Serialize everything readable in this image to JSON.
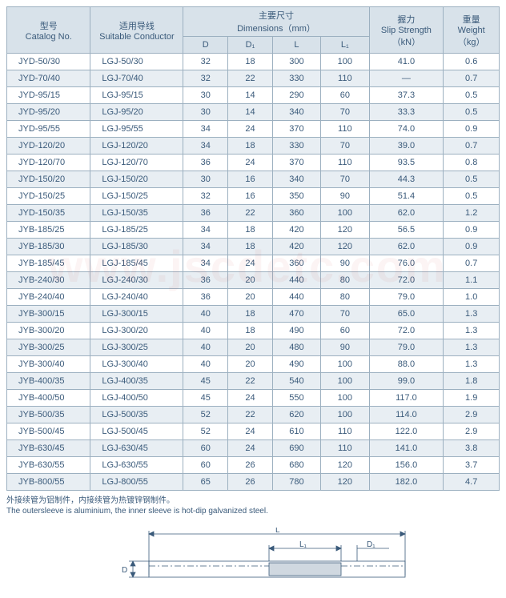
{
  "headers": {
    "catalog_cn": "型号",
    "catalog_en": "Catalog No.",
    "conductor_cn": "适用导线",
    "conductor_en": "Suitable Conductor",
    "dims_cn": "主要尺寸",
    "dims_en": "Dimensions（mm）",
    "D": "D",
    "D1": "D₁",
    "L": "L",
    "L1": "L₁",
    "slip_cn": "握力",
    "slip_en": "Slip Strength",
    "slip_unit": "（kN）",
    "weight_cn": "重量",
    "weight_en": "Weight",
    "weight_unit": "（kg）"
  },
  "col_widths": {
    "catalog": 90,
    "conductor": 100,
    "D": 48,
    "D1": 48,
    "L": 52,
    "L1": 52,
    "slip": 80,
    "weight": 60
  },
  "header_bg": "#d8e2ea",
  "row_odd_bg": "#ffffff",
  "row_even_bg": "#e8eef3",
  "border_color": "#9cb0c0",
  "text_color": "#3a5a7a",
  "rows": [
    {
      "catalog": "JYD-50/30",
      "conductor": "LGJ-50/30",
      "D": "32",
      "D1": "18",
      "L": "300",
      "L1": "100",
      "slip": "41.0",
      "weight": "0.6"
    },
    {
      "catalog": "JYD-70/40",
      "conductor": "LGJ-70/40",
      "D": "32",
      "D1": "22",
      "L": "330",
      "L1": "110",
      "slip": "—",
      "weight": "0.7"
    },
    {
      "catalog": "JYD-95/15",
      "conductor": "LGJ-95/15",
      "D": "30",
      "D1": "14",
      "L": "290",
      "L1": "60",
      "slip": "37.3",
      "weight": "0.5"
    },
    {
      "catalog": "JYD-95/20",
      "conductor": "LGJ-95/20",
      "D": "30",
      "D1": "14",
      "L": "340",
      "L1": "70",
      "slip": "33.3",
      "weight": "0.5"
    },
    {
      "catalog": "JYD-95/55",
      "conductor": "LGJ-95/55",
      "D": "34",
      "D1": "24",
      "L": "370",
      "L1": "110",
      "slip": "74.0",
      "weight": "0.9"
    },
    {
      "catalog": "JYD-120/20",
      "conductor": "LGJ-120/20",
      "D": "34",
      "D1": "18",
      "L": "330",
      "L1": "70",
      "slip": "39.0",
      "weight": "0.7"
    },
    {
      "catalog": "JYD-120/70",
      "conductor": "LGJ-120/70",
      "D": "36",
      "D1": "24",
      "L": "370",
      "L1": "110",
      "slip": "93.5",
      "weight": "0.8"
    },
    {
      "catalog": "JYD-150/20",
      "conductor": "LGJ-150/20",
      "D": "30",
      "D1": "16",
      "L": "340",
      "L1": "70",
      "slip": "44.3",
      "weight": "0.5"
    },
    {
      "catalog": "JYD-150/25",
      "conductor": "LGJ-150/25",
      "D": "32",
      "D1": "16",
      "L": "350",
      "L1": "90",
      "slip": "51.4",
      "weight": "0.5"
    },
    {
      "catalog": "JYD-150/35",
      "conductor": "LGJ-150/35",
      "D": "36",
      "D1": "22",
      "L": "360",
      "L1": "100",
      "slip": "62.0",
      "weight": "1.2"
    },
    {
      "catalog": "JYB-185/25",
      "conductor": "LGJ-185/25",
      "D": "34",
      "D1": "18",
      "L": "420",
      "L1": "120",
      "slip": "56.5",
      "weight": "0.9"
    },
    {
      "catalog": "JYB-185/30",
      "conductor": "LGJ-185/30",
      "D": "34",
      "D1": "18",
      "L": "420",
      "L1": "120",
      "slip": "62.0",
      "weight": "0.9"
    },
    {
      "catalog": "JYB-185/45",
      "conductor": "LGJ-185/45",
      "D": "34",
      "D1": "24",
      "L": "360",
      "L1": "90",
      "slip": "76.0",
      "weight": "0.7"
    },
    {
      "catalog": "JYB-240/30",
      "conductor": "LGJ-240/30",
      "D": "36",
      "D1": "20",
      "L": "440",
      "L1": "80",
      "slip": "72.0",
      "weight": "1.1"
    },
    {
      "catalog": "JYB-240/40",
      "conductor": "LGJ-240/40",
      "D": "36",
      "D1": "20",
      "L": "440",
      "L1": "80",
      "slip": "79.0",
      "weight": "1.0"
    },
    {
      "catalog": "JYB-300/15",
      "conductor": "LGJ-300/15",
      "D": "40",
      "D1": "18",
      "L": "470",
      "L1": "70",
      "slip": "65.0",
      "weight": "1.3"
    },
    {
      "catalog": "JYB-300/20",
      "conductor": "LGJ-300/20",
      "D": "40",
      "D1": "18",
      "L": "490",
      "L1": "60",
      "slip": "72.0",
      "weight": "1.3"
    },
    {
      "catalog": "JYB-300/25",
      "conductor": "LGJ-300/25",
      "D": "40",
      "D1": "20",
      "L": "480",
      "L1": "90",
      "slip": "79.0",
      "weight": "1.3"
    },
    {
      "catalog": "JYB-300/40",
      "conductor": "LGJ-300/40",
      "D": "40",
      "D1": "20",
      "L": "490",
      "L1": "100",
      "slip": "88.0",
      "weight": "1.3"
    },
    {
      "catalog": "JYB-400/35",
      "conductor": "LGJ-400/35",
      "D": "45",
      "D1": "22",
      "L": "540",
      "L1": "100",
      "slip": "99.0",
      "weight": "1.8"
    },
    {
      "catalog": "JYB-400/50",
      "conductor": "LGJ-400/50",
      "D": "45",
      "D1": "24",
      "L": "550",
      "L1": "100",
      "slip": "117.0",
      "weight": "1.9"
    },
    {
      "catalog": "JYB-500/35",
      "conductor": "LGJ-500/35",
      "D": "52",
      "D1": "22",
      "L": "620",
      "L1": "100",
      "slip": "114.0",
      "weight": "2.9"
    },
    {
      "catalog": "JYB-500/45",
      "conductor": "LGJ-500/45",
      "D": "52",
      "D1": "24",
      "L": "610",
      "L1": "110",
      "slip": "122.0",
      "weight": "2.9"
    },
    {
      "catalog": "JYB-630/45",
      "conductor": "LGJ-630/45",
      "D": "60",
      "D1": "24",
      "L": "690",
      "L1": "110",
      "slip": "141.0",
      "weight": "3.8"
    },
    {
      "catalog": "JYB-630/55",
      "conductor": "LGJ-630/55",
      "D": "60",
      "D1": "26",
      "L": "680",
      "L1": "120",
      "slip": "156.0",
      "weight": "3.7"
    },
    {
      "catalog": "JYB-800/55",
      "conductor": "LGJ-800/55",
      "D": "65",
      "D1": "26",
      "L": "780",
      "L1": "120",
      "slip": "182.0",
      "weight": "4.7"
    }
  ],
  "note_cn": "外接续管为铝制件，内接续管为热镀锌钢制件。",
  "note_en": "The outersleeve is aluminium, the inner sleeve is hot-dip galvanized steel.",
  "diagram_labels": {
    "L": "L",
    "L1": "L₁",
    "D": "D",
    "D1": "D₁"
  },
  "watermark": "www.jscdetc.com"
}
